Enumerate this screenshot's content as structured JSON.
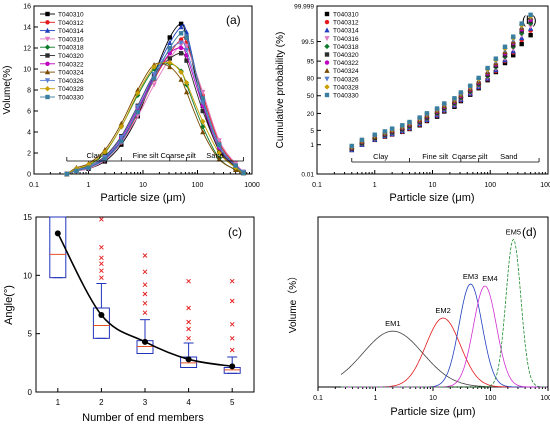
{
  "colors": {
    "series_a": [
      "#000000",
      "#e41a1c",
      "#1f3fbf",
      "#e07ac0",
      "#0b7a2a",
      "#2d2d2d",
      "#c000c0",
      "#7a4a00",
      "#5a7fd0",
      "#c8a000",
      "#3a7fa0"
    ],
    "members": [
      "#444444",
      "#e41a1c",
      "#1f3fbf",
      "#d02fd0",
      "#1a8a2a"
    ],
    "box": "#2233bb",
    "median": "#e85020",
    "outlier": "#e41a1c",
    "line": "#000000"
  },
  "chart_data": [
    {
      "panel": "(a)",
      "type": "line",
      "xlabel": "Particle size (μm)",
      "ylabel": "Volume(%)",
      "xscale": "log",
      "xlim": [
        0.1,
        1000
      ],
      "ylim": [
        0,
        16
      ],
      "xticks": [
        "0.1",
        "1",
        "10",
        "100",
        "1000"
      ],
      "yticks": [
        "0",
        "2",
        "4",
        "6",
        "8",
        "10",
        "12",
        "14",
        "16"
      ],
      "grid": false,
      "legend_position": "top-left",
      "annotations": [
        "Clay",
        "Fine silt",
        "Coarse silt",
        "Sand"
      ],
      "x": [
        0.4,
        0.6,
        1,
        2,
        4,
        8,
        16,
        31,
        50,
        63,
        125,
        250,
        500,
        700
      ],
      "series": [
        {
          "name": "T040310",
          "values": [
            0,
            0.3,
            0.5,
            1.2,
            2.8,
            5.5,
            9.5,
            13.0,
            14.3,
            13.0,
            6.5,
            2.2,
            0.6,
            0.1
          ]
        },
        {
          "name": "T040312",
          "values": [
            0,
            0.3,
            0.6,
            1.4,
            3.0,
            5.8,
            9.0,
            11.5,
            12.8,
            12.5,
            7.5,
            3.0,
            0.9,
            0.2
          ]
        },
        {
          "name": "T040314",
          "values": [
            0,
            0.4,
            0.6,
            1.5,
            3.2,
            6.0,
            9.5,
            12.5,
            14.0,
            13.5,
            7.0,
            2.5,
            0.7,
            0.1
          ]
        },
        {
          "name": "T040316",
          "values": [
            0,
            0.3,
            0.5,
            1.3,
            3.0,
            5.5,
            8.5,
            11.0,
            12.3,
            12.2,
            7.8,
            3.2,
            1.0,
            0.2
          ]
        },
        {
          "name": "T040318",
          "values": [
            0,
            0.5,
            0.8,
            2.0,
            4.5,
            7.5,
            10.0,
            10.5,
            9.8,
            8.5,
            4.5,
            1.5,
            0.4,
            0.1
          ]
        },
        {
          "name": "T040320",
          "values": [
            0,
            0.4,
            0.7,
            1.7,
            3.6,
            6.5,
            9.5,
            11.0,
            11.5,
            10.8,
            6.0,
            2.3,
            0.7,
            0.1
          ]
        },
        {
          "name": "T040322",
          "values": [
            0,
            0.4,
            0.7,
            1.6,
            3.4,
            6.2,
            9.2,
            11.5,
            12.0,
            11.3,
            6.5,
            2.5,
            0.8,
            0.2
          ]
        },
        {
          "name": "T040324",
          "values": [
            0,
            0.6,
            1.0,
            2.3,
            4.8,
            8.0,
            10.4,
            10.2,
            9.0,
            7.8,
            4.0,
            1.4,
            0.4,
            0.1
          ]
        },
        {
          "name": "T040326",
          "values": [
            0,
            0.4,
            0.7,
            1.6,
            3.5,
            6.4,
            9.5,
            11.8,
            12.5,
            11.8,
            6.8,
            2.6,
            0.8,
            0.2
          ]
        },
        {
          "name": "T040328",
          "values": [
            0,
            0.5,
            0.9,
            2.1,
            4.5,
            7.7,
            10.2,
            10.6,
            9.7,
            8.7,
            5.0,
            2.0,
            0.6,
            0.1
          ]
        },
        {
          "name": "T040330",
          "values": [
            0,
            0.3,
            0.6,
            1.4,
            3.1,
            5.9,
            9.1,
            12.0,
            13.4,
            13.0,
            7.2,
            2.8,
            0.8,
            0.1
          ]
        }
      ]
    },
    {
      "panel": "(b)",
      "type": "scatter",
      "xlabel": "Particle size (μm)",
      "ylabel": "Cumulative probability (%)",
      "xscale": "log",
      "yscale": "probability",
      "xlim": [
        0.1,
        1000
      ],
      "ylim": [
        0.01,
        99.999
      ],
      "xticks": [
        "0.1",
        "1",
        "10",
        "100",
        "1000"
      ],
      "yticks": [
        "0.01",
        "1",
        "5",
        "20",
        "50",
        "80",
        "95",
        "99.5",
        "99.999"
      ],
      "grid": false,
      "legend_position": "top-left",
      "annotations": [
        "Clay",
        "Fine silt",
        "Coarse silt",
        "Sand"
      ],
      "x": [
        0.4,
        0.6,
        1,
        1.5,
        2,
        3,
        4,
        6,
        8,
        12,
        16,
        24,
        31,
        45,
        63,
        90,
        125,
        180,
        250,
        350,
        500
      ],
      "series": [
        {
          "name": "T040310",
          "values": [
            0.5,
            1.0,
            1.8,
            2.6,
            3.3,
            4.3,
            5.7,
            8.0,
            11.5,
            16.0,
            22.8,
            30.0,
            40.0,
            52.0,
            64.0,
            77.0,
            87.0,
            94.0,
            97.3,
            99.3,
            99.8
          ]
        },
        {
          "name": "T040312",
          "values": [
            0.5,
            1.0,
            1.8,
            2.6,
            3.3,
            4.4,
            5.9,
            8.4,
            12.0,
            17.0,
            23.8,
            31.5,
            41.5,
            53.5,
            65.5,
            78.5,
            88.0,
            95.0,
            98.0,
            99.6,
            99.9
          ]
        },
        {
          "name": "T040314",
          "values": [
            0.5,
            1.0,
            1.9,
            2.8,
            3.5,
            4.7,
            6.3,
            9.0,
            12.6,
            17.8,
            24.8,
            32.5,
            42.5,
            54.5,
            66.5,
            79.5,
            89.0,
            95.5,
            98.3,
            99.7,
            99.93
          ]
        },
        {
          "name": "T040316",
          "values": [
            0.55,
            1.1,
            2.0,
            2.9,
            3.7,
            5.0,
            6.7,
            9.6,
            13.3,
            18.8,
            25.8,
            33.8,
            44.0,
            56.0,
            68.0,
            81.0,
            90.2,
            96.2,
            98.7,
            99.8,
            99.95
          ]
        },
        {
          "name": "T040318",
          "values": [
            0.6,
            1.2,
            2.2,
            3.1,
            4.0,
            5.4,
            7.2,
            10.3,
            14.2,
            20.0,
            27.2,
            35.5,
            46.0,
            58.0,
            70.0,
            82.5,
            91.3,
            96.8,
            99.0,
            99.85,
            99.97
          ]
        },
        {
          "name": "T040320",
          "values": [
            0.6,
            1.3,
            2.3,
            3.3,
            4.3,
            5.8,
            7.8,
            11.0,
            15.2,
            21.2,
            28.6,
            37.2,
            47.8,
            59.8,
            71.8,
            84.0,
            92.3,
            97.3,
            99.2,
            99.9,
            99.98
          ]
        },
        {
          "name": "T040322",
          "values": [
            0.65,
            1.4,
            2.5,
            3.5,
            4.6,
            6.2,
            8.3,
            11.8,
            16.2,
            22.4,
            30.0,
            38.8,
            49.5,
            61.5,
            73.5,
            85.5,
            93.2,
            97.8,
            99.4,
            99.92,
            99.985
          ]
        },
        {
          "name": "T040324",
          "values": [
            0.7,
            1.5,
            2.6,
            3.7,
            4.9,
            6.6,
            8.8,
            12.5,
            17.2,
            23.6,
            31.4,
            40.4,
            51.2,
            63.2,
            75.2,
            87.0,
            94.0,
            98.2,
            99.5,
            99.94,
            99.99
          ]
        },
        {
          "name": "T040326",
          "values": [
            0.75,
            1.6,
            2.8,
            3.9,
            5.2,
            7.0,
            9.4,
            13.3,
            18.2,
            24.8,
            32.8,
            42.0,
            53.0,
            65.0,
            77.0,
            88.3,
            94.8,
            98.5,
            99.6,
            99.95,
            99.99
          ]
        },
        {
          "name": "T040328",
          "values": [
            0.8,
            1.7,
            3.0,
            4.2,
            5.5,
            7.5,
            10.0,
            14.1,
            19.2,
            26.0,
            34.2,
            43.6,
            54.6,
            66.6,
            78.6,
            89.5,
            95.5,
            98.8,
            99.7,
            99.96,
            99.992
          ]
        },
        {
          "name": "T040330",
          "values": [
            0.85,
            1.8,
            3.2,
            4.5,
            5.9,
            8.0,
            10.6,
            15.0,
            20.2,
            27.2,
            35.6,
            45.2,
            56.2,
            68.2,
            80.2,
            90.6,
            96.1,
            99.0,
            99.75,
            99.97,
            99.994
          ]
        }
      ]
    },
    {
      "panel": "(c)",
      "type": "box",
      "xlabel": "Number of end members",
      "ylabel": "Angle(°)",
      "xlim": [
        0.5,
        5.5
      ],
      "ylim": [
        0,
        15
      ],
      "xticks": [
        "1",
        "2",
        "3",
        "4",
        "5"
      ],
      "yticks": [
        "0",
        "5",
        "10",
        "15"
      ],
      "categories": [
        "1",
        "2",
        "3",
        "4",
        "5"
      ],
      "boxes": [
        {
          "q1": 9.8,
          "median": 11.8,
          "q3": 15.0,
          "whisker_low": 9.8,
          "whisker_high": 15.0,
          "mean": 13.6,
          "outliers": []
        },
        {
          "q1": 4.6,
          "median": 5.7,
          "q3": 7.2,
          "whisker_low": 4.6,
          "whisker_high": 9.3,
          "mean": 6.6,
          "outliers": [
            9.8,
            10.4,
            11.0,
            11.5,
            12.4,
            14.8
          ]
        },
        {
          "q1": 3.3,
          "median": 3.9,
          "q3": 4.4,
          "whisker_low": 3.3,
          "whisker_high": 6.2,
          "mean": 4.3,
          "outliers": [
            6.8,
            7.6,
            8.4,
            9.2,
            10.3,
            11.7
          ]
        },
        {
          "q1": 2.1,
          "median": 2.5,
          "q3": 3.0,
          "whisker_low": 2.1,
          "whisker_high": 4.2,
          "mean": 2.8,
          "outliers": [
            4.6,
            5.4,
            6.0,
            7.2,
            9.5
          ]
        },
        {
          "q1": 1.6,
          "median": 1.9,
          "q3": 2.1,
          "whisker_low": 1.6,
          "whisker_high": 3.0,
          "mean": 2.2,
          "outliers": [
            3.6,
            4.6,
            5.8,
            7.8,
            9.5
          ]
        }
      ]
    },
    {
      "panel": "(d)",
      "type": "line",
      "xlabel": "Particle size (μm)",
      "ylabel": "Volume（%）",
      "xscale": "log",
      "xlim": [
        0.1,
        1000
      ],
      "xticks": [
        "0.1",
        "1",
        "10",
        "100",
        "1000"
      ],
      "ylim": [
        0,
        35
      ],
      "series": [
        {
          "name": "EM1",
          "center": 2.0,
          "log_width": 0.52,
          "peak": 11.5
        },
        {
          "name": "EM2",
          "center": 15.0,
          "log_width": 0.3,
          "peak": 14.2
        },
        {
          "name": "EM3",
          "center": 45.0,
          "log_width": 0.2,
          "peak": 21.2
        },
        {
          "name": "EM4",
          "center": 80.0,
          "log_width": 0.2,
          "peak": 20.8
        },
        {
          "name": "EM5",
          "center": 250.0,
          "log_width": 0.13,
          "peak": 30.4
        }
      ]
    }
  ]
}
